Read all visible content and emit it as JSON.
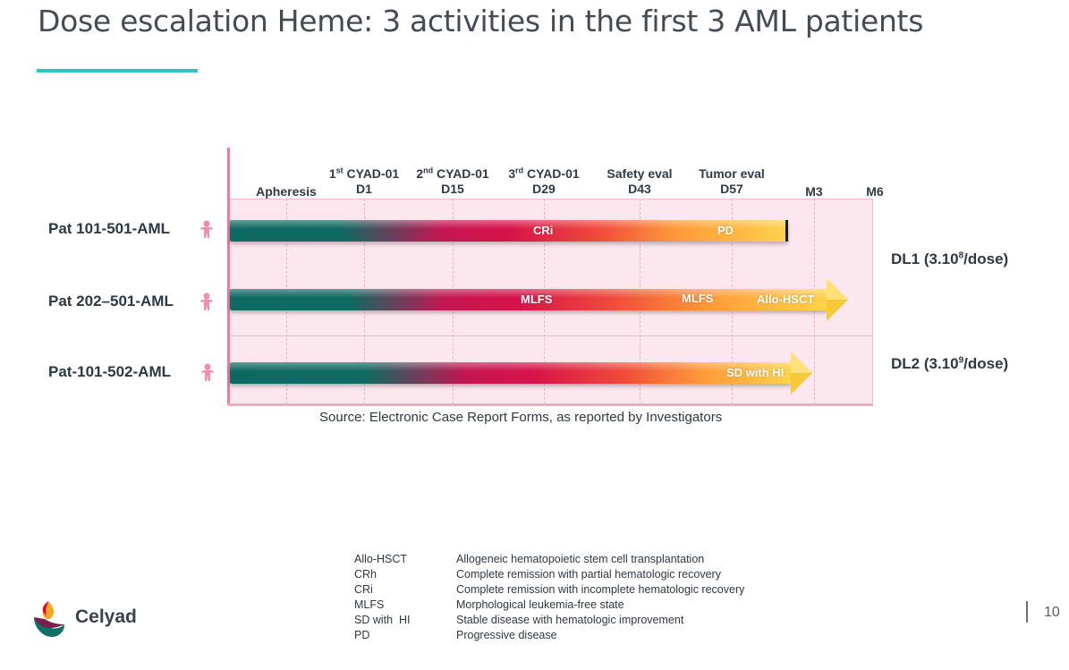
{
  "title": "Dose escalation Heme: 3 activities in the first 3 AML patients",
  "colors": {
    "accent_rule": "#2ec4c0",
    "zone_fill": "#fde7ee",
    "axis_pink": "#f07aa0",
    "bar_start": "#0d6a62",
    "bar_mid": "#d8124a",
    "bar_mid2": "#f04a3c",
    "bar_end": "#ffd34a",
    "person_icon": "#f28bad"
  },
  "milestones": [
    {
      "sup": "",
      "top": "",
      "bottom": "Apheresis"
    },
    {
      "sup": "st",
      "prefix": "1",
      "top": " CYAD-01",
      "bottom": "D1"
    },
    {
      "sup": "nd",
      "prefix": "2",
      "top": " CYAD-01",
      "bottom": "D15"
    },
    {
      "sup": "rd",
      "prefix": "3",
      "top": " CYAD-01",
      "bottom": "D29"
    },
    {
      "sup": "",
      "top": "Safety eval",
      "bottom": "D43"
    },
    {
      "sup": "",
      "top": "Tumor eval",
      "bottom": "D57"
    },
    {
      "sup": "",
      "top": "",
      "bottom": "M3"
    },
    {
      "sup": "",
      "top": "",
      "bottom": "M6"
    }
  ],
  "patients": [
    {
      "label": "Pat 101-501-AML",
      "icon": "person-icon",
      "annotations": [
        "CRi",
        "PD"
      ],
      "end": "stop"
    },
    {
      "label": "Pat 202–501-AML",
      "icon": "person-icon",
      "annotations": [
        "MLFS",
        "MLFS",
        "Allo-HSCT"
      ],
      "end": "arrow"
    },
    {
      "label": "Pat-101-502-AML",
      "icon": "person-icon",
      "annotations": [
        "SD with HI"
      ],
      "end": "arrow"
    }
  ],
  "dose_levels": [
    {
      "label": "DL1 (3.10",
      "sup": "8",
      "suffix": "/dose)"
    },
    {
      "label": "DL2 (3.10",
      "sup": "9",
      "suffix": "/dose)"
    }
  ],
  "source": "Source: Electronic Case Report Forms, as reported by Investigators",
  "abbreviations": [
    {
      "term": "Allo-HSCT",
      "definition": "Allogeneic hematopoietic stem cell transplantation"
    },
    {
      "term": "CRh",
      "definition": "Complete remission with partial hematologic recovery"
    },
    {
      "term": "CRi",
      "definition": "Complete remission with incomplete hematologic recovery"
    },
    {
      "term": "MLFS",
      "definition": "Morphological leukemia-free state"
    },
    {
      "term": "SD with  HI",
      "definition": "Stable disease with hematologic improvement"
    },
    {
      "term": "PD",
      "definition": "Progressive disease"
    }
  ],
  "logo": {
    "text": "Celyad",
    "icon": "celyad-logo-icon"
  },
  "page_number": "10"
}
